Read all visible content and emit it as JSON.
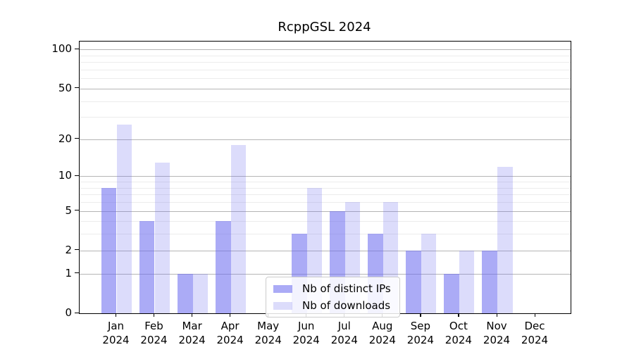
{
  "title": "RcppGSL 2024",
  "chart_data": {
    "type": "bar",
    "title": "RcppGSL 2024",
    "categories": [
      "Jan",
      "Feb",
      "Mar",
      "Apr",
      "May",
      "Jun",
      "Jul",
      "Aug",
      "Sep",
      "Oct",
      "Nov",
      "Dec"
    ],
    "category_year": "2024",
    "series": [
      {
        "name": "Nb of distinct IPs",
        "values": [
          8,
          4,
          1,
          4,
          0,
          3,
          5,
          3,
          2,
          1,
          2,
          0
        ],
        "color": "rgba(102,102,238,0.55)"
      },
      {
        "name": "Nb of downloads",
        "values": [
          26,
          13,
          1,
          18,
          0,
          8,
          6,
          6,
          3,
          2,
          12,
          0
        ],
        "color": "rgba(102,102,238,0.23)"
      }
    ],
    "xlabel": "",
    "ylabel": "",
    "yscale": "log1p",
    "ylim": [
      0,
      115
    ],
    "yticks": [
      0,
      1,
      2,
      5,
      10,
      20,
      50,
      100
    ],
    "ytick_labels": [
      "0",
      "1",
      "2",
      "5",
      "10",
      "20",
      "50",
      "100"
    ],
    "minor_yticks": [
      3,
      4,
      6,
      7,
      8,
      9,
      30,
      40,
      60,
      70,
      80,
      90
    ],
    "grid": "on",
    "legend_position": "lower center",
    "colors": {
      "bar_base": "#6666ee",
      "major_grid": "#b5b5b5",
      "minor_grid": "#ececec",
      "axis": "#000000",
      "background": "#ffffff"
    }
  }
}
